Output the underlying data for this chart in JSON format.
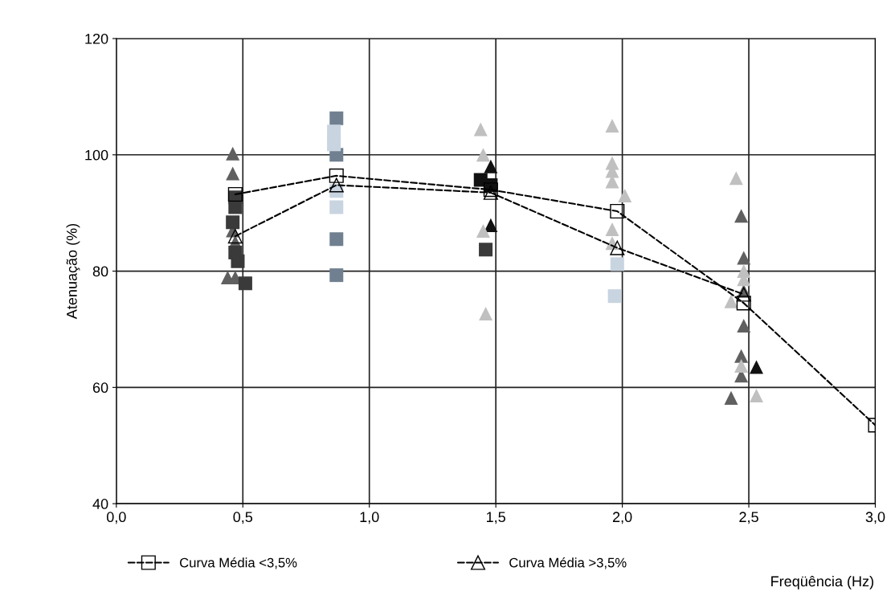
{
  "chart_data": {
    "type": "scatter",
    "xlabel": "Freqüência (Hz)",
    "ylabel": "Atenuação (%)",
    "xlim": [
      0,
      3
    ],
    "ylim": [
      40,
      120
    ],
    "xticks": [
      {
        "value": 0,
        "label": "0,0"
      },
      {
        "value": 0.5,
        "label": "0,5"
      },
      {
        "value": 1,
        "label": "1,0"
      },
      {
        "value": 1.5,
        "label": "1,5"
      },
      {
        "value": 2,
        "label": "2,0"
      },
      {
        "value": 2.5,
        "label": "2,5"
      },
      {
        "value": 3,
        "label": "3,0"
      }
    ],
    "yticks": [
      40,
      60,
      80,
      100,
      120
    ],
    "grid": true,
    "legend": "bottom",
    "series": [
      {
        "color": "#606060",
        "marker": "triangle",
        "x": [
          0.46,
          0.46,
          0.46,
          0.47,
          0.44,
          0.47,
          2.47,
          2.48,
          2.48,
          2.48,
          2.47,
          2.47,
          2.43
        ],
        "values": [
          100.2,
          96.8,
          87,
          85,
          78.9,
          78.9,
          89.5,
          82.3,
          76.6,
          70.6,
          65.4,
          62,
          58.2
        ]
      },
      {
        "color": "#3a3a3a",
        "marker": "square",
        "x": [
          0.47,
          0.47,
          0.46,
          0.47,
          0.48,
          0.51,
          1.46
        ],
        "values": [
          92.7,
          91,
          88.4,
          83.2,
          81.7,
          77.9,
          83.7
        ]
      },
      {
        "color": "#708090",
        "marker": "square",
        "x": [
          0.87,
          0.87,
          0.87,
          0.87
        ],
        "values": [
          106.3,
          100,
          85.5,
          79.3
        ]
      },
      {
        "color": "#c8d4e0",
        "marker": "square",
        "x": [
          0.86,
          0.86,
          0.87,
          0.87,
          1.98,
          1.97
        ],
        "values": [
          104,
          101.8,
          93.8,
          91,
          81.2,
          75.7
        ]
      },
      {
        "color": "#111111",
        "marker": "square",
        "x": [
          1.44,
          1.48
        ],
        "values": [
          95.7,
          94.8
        ]
      },
      {
        "color": "#111111",
        "marker": "triangle",
        "x": [
          1.48,
          1.48,
          2.53
        ],
        "values": [
          98,
          87.9,
          63.5
        ]
      },
      {
        "color": "#c0c0c0",
        "marker": "triangle",
        "x": [
          1.44,
          1.45,
          1.45,
          1.46,
          1.96,
          1.96,
          1.96,
          1.96,
          2.01,
          1.96,
          1.96,
          2.45,
          2.48,
          2.48,
          2.43,
          2.47,
          2.53
        ],
        "values": [
          104.4,
          100,
          86.9,
          72.7,
          105,
          98.6,
          97.2,
          95.4,
          93,
          87.2,
          84.8,
          96,
          80,
          78.6,
          74.8,
          63.7,
          58.6
        ]
      },
      {
        "type": "line",
        "name": "Curva Média <3,5%",
        "color": "#000000",
        "marker": "square",
        "line_style": "dashed",
        "x": [
          0.47,
          0.87,
          1.48,
          1.98,
          2.48,
          3.0
        ],
        "values": [
          93.2,
          96.4,
          94,
          90.3,
          74.5,
          53.5
        ]
      },
      {
        "type": "line",
        "name": "Curva Média >3,5%",
        "color": "#000000",
        "marker": "triangle",
        "line_style": "dashed",
        "x": [
          0.47,
          0.87,
          1.48,
          1.98,
          2.48
        ],
        "values": [
          86,
          94.8,
          93.5,
          84,
          76
        ]
      }
    ]
  }
}
